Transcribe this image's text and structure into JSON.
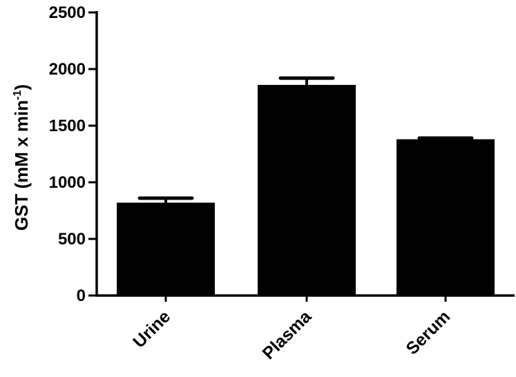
{
  "chart_data": {
    "type": "bar",
    "categories": [
      "Urine",
      "Plasma",
      "Serum"
    ],
    "values": [
      820,
      1860,
      1380
    ],
    "error_upper": [
      860,
      1920,
      1390
    ],
    "ylabel": {
      "main": "GST (mM x min",
      "sup": "-1",
      "close": ")"
    },
    "ylim": [
      0,
      2500
    ],
    "yticks": [
      0,
      500,
      1000,
      1500,
      2000,
      2500
    ],
    "grid": false,
    "legend": "none",
    "bar_color": "#000000"
  }
}
